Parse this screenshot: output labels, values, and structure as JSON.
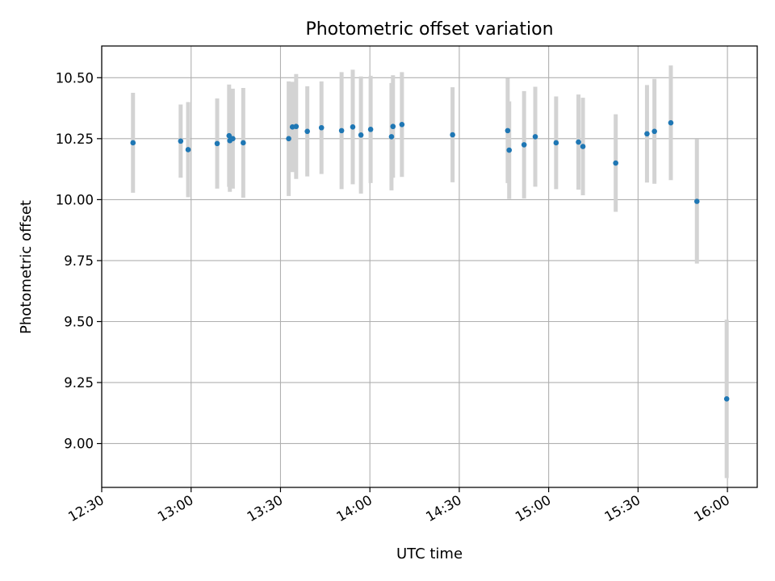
{
  "chart_data": {
    "type": "scatter",
    "title": "Photometric offset variation",
    "xlabel": "UTC time",
    "ylabel": "Photometric offset",
    "x_unit": "UTC time (HH:MM)",
    "xlim": [
      "12:30",
      "16:10"
    ],
    "ylim": [
      8.82,
      10.63
    ],
    "grid": true,
    "x_ticks": [
      "12:30",
      "13:00",
      "13:30",
      "14:00",
      "14:30",
      "15:00",
      "15:30",
      "16:00"
    ],
    "y_ticks": [
      "9.00",
      "9.25",
      "9.50",
      "9.75",
      "10.00",
      "10.25",
      "10.50"
    ],
    "y_tick_values": [
      9.0,
      9.25,
      9.5,
      9.75,
      10.0,
      10.25,
      10.5
    ],
    "colors": {
      "point": "#1f77b4",
      "errorbar": "#d3d3d3",
      "grid": "#b0b0b0"
    },
    "points": [
      {
        "x": "12:40:30",
        "y": 10.233,
        "err": 0.205
      },
      {
        "x": "12:56:30",
        "y": 10.24,
        "err": 0.15
      },
      {
        "x": "12:59:00",
        "y": 10.205,
        "err": 0.195
      },
      {
        "x": "13:08:45",
        "y": 10.23,
        "err": 0.185
      },
      {
        "x": "13:12:45",
        "y": 10.262,
        "err": 0.21
      },
      {
        "x": "13:13:00",
        "y": 10.242,
        "err": 0.21
      },
      {
        "x": "13:14:00",
        "y": 10.25,
        "err": 0.205
      },
      {
        "x": "13:17:30",
        "y": 10.233,
        "err": 0.225
      },
      {
        "x": "13:32:45",
        "y": 10.25,
        "err": 0.235
      },
      {
        "x": "13:34:00",
        "y": 10.298,
        "err": 0.185
      },
      {
        "x": "13:35:15",
        "y": 10.3,
        "err": 0.215
      },
      {
        "x": "13:39:00",
        "y": 10.28,
        "err": 0.185
      },
      {
        "x": "13:43:45",
        "y": 10.295,
        "err": 0.19
      },
      {
        "x": "13:50:30",
        "y": 10.283,
        "err": 0.24
      },
      {
        "x": "13:54:15",
        "y": 10.298,
        "err": 0.235
      },
      {
        "x": "13:57:00",
        "y": 10.265,
        "err": 0.24
      },
      {
        "x": "14:00:15",
        "y": 10.288,
        "err": 0.22
      },
      {
        "x": "14:07:15",
        "y": 10.258,
        "err": 0.22
      },
      {
        "x": "14:07:45",
        "y": 10.3,
        "err": 0.21
      },
      {
        "x": "14:10:45",
        "y": 10.308,
        "err": 0.215
      },
      {
        "x": "14:27:45",
        "y": 10.266,
        "err": 0.195
      },
      {
        "x": "14:46:15",
        "y": 10.283,
        "err": 0.215
      },
      {
        "x": "14:46:45",
        "y": 10.203,
        "err": 0.2
      },
      {
        "x": "14:51:45",
        "y": 10.225,
        "err": 0.22
      },
      {
        "x": "14:55:30",
        "y": 10.258,
        "err": 0.205
      },
      {
        "x": "15:02:30",
        "y": 10.233,
        "err": 0.19
      },
      {
        "x": "15:10:00",
        "y": 10.236,
        "err": 0.195
      },
      {
        "x": "15:11:30",
        "y": 10.218,
        "err": 0.2
      },
      {
        "x": "15:22:30",
        "y": 10.15,
        "err": 0.2
      },
      {
        "x": "15:33:00",
        "y": 10.27,
        "err": 0.2
      },
      {
        "x": "15:35:30",
        "y": 10.28,
        "err": 0.215
      },
      {
        "x": "15:41:00",
        "y": 10.315,
        "err": 0.235
      },
      {
        "x": "15:49:45",
        "y": 9.993,
        "err": 0.255
      },
      {
        "x": "15:59:45",
        "y": 9.183,
        "err": 0.325
      }
    ]
  }
}
